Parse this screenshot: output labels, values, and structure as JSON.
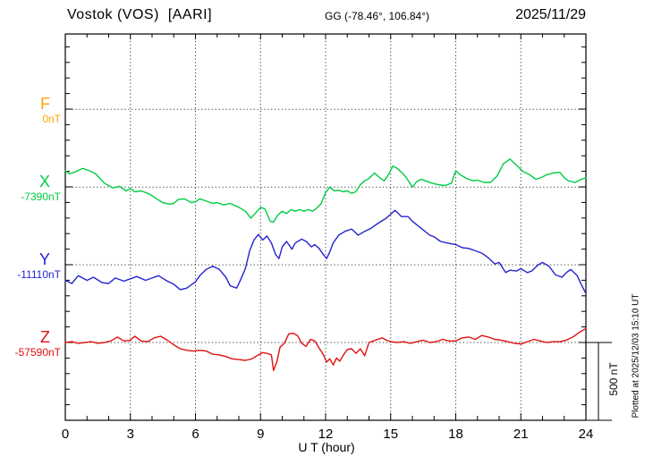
{
  "header": {
    "station": "Vostok (VOS)  [AARI]",
    "coordinates": "GG (-78.46°, 106.84°)",
    "date": "2025/11/29"
  },
  "side": {
    "plotted_note": "Plotted at 2025/12/03 15:10 UT"
  },
  "scale_bar": {
    "label": "500 nT",
    "span_nT": 500
  },
  "axes": {
    "x_label": "U T (hour)",
    "x_ticks": [
      0,
      3,
      6,
      9,
      12,
      15,
      18,
      21,
      24
    ],
    "x_range": [
      0,
      24
    ],
    "x_minor_step_hours": 1,
    "y_minor_step_nT": 100,
    "y_spacing_between_components_nT": 500
  },
  "components": [
    {
      "id": "F",
      "label": "F",
      "baseline_label": "0nT",
      "color": "#FFA500"
    },
    {
      "id": "X",
      "label": "X",
      "baseline_label": "-7390nT",
      "color": "#00CC44"
    },
    {
      "id": "Y",
      "label": "Y",
      "baseline_label": "-11110nT",
      "color": "#2424CF"
    },
    {
      "id": "Z",
      "label": "Z",
      "baseline_label": "-57590nT",
      "color": "#E01010"
    }
  ],
  "chart_data": {
    "type": "line",
    "title": "Vostok (VOS) [AARI] magnetogram 2025/11/29",
    "xlabel": "U T (hour)",
    "x_range": [
      0,
      24
    ],
    "x_ticks": [
      0,
      3,
      6,
      9,
      12,
      15,
      18,
      21,
      24
    ],
    "grid": "dotted vertical lines every 3 hours; dotted horizontal line at each component baseline",
    "units": "points are [hour UT, offset in nT relative to the component baseline value]",
    "series": [
      {
        "name": "F",
        "baseline_nT": 0,
        "color": "#FFA500",
        "note": "no data plotted",
        "points": []
      },
      {
        "name": "X",
        "baseline_nT": -7390,
        "color": "#00CC44",
        "points": [
          [
            0,
            105
          ],
          [
            0.2,
            85
          ],
          [
            0.5,
            100
          ],
          [
            0.8,
            120
          ],
          [
            1.1,
            105
          ],
          [
            1.4,
            85
          ],
          [
            1.6,
            55
          ],
          [
            1.8,
            25
          ],
          [
            2,
            10
          ],
          [
            2.2,
            -5
          ],
          [
            2.5,
            5
          ],
          [
            2.8,
            -25
          ],
          [
            3,
            -10
          ],
          [
            3.2,
            -30
          ],
          [
            3.5,
            -25
          ],
          [
            3.8,
            -40
          ],
          [
            4,
            -55
          ],
          [
            4.2,
            -75
          ],
          [
            4.5,
            -100
          ],
          [
            4.8,
            -110
          ],
          [
            5,
            -105
          ],
          [
            5.2,
            -80
          ],
          [
            5.5,
            -75
          ],
          [
            5.8,
            -100
          ],
          [
            6,
            -95
          ],
          [
            6.2,
            -75
          ],
          [
            6.5,
            -90
          ],
          [
            6.8,
            -105
          ],
          [
            7,
            -100
          ],
          [
            7.3,
            -115
          ],
          [
            7.6,
            -105
          ],
          [
            8,
            -130
          ],
          [
            8.3,
            -155
          ],
          [
            8.55,
            -200
          ],
          [
            8.75,
            -170
          ],
          [
            9,
            -130
          ],
          [
            9.2,
            -140
          ],
          [
            9.45,
            -220
          ],
          [
            9.6,
            -225
          ],
          [
            9.8,
            -180
          ],
          [
            10,
            -155
          ],
          [
            10.2,
            -170
          ],
          [
            10.4,
            -145
          ],
          [
            10.6,
            -155
          ],
          [
            10.8,
            -145
          ],
          [
            11,
            -155
          ],
          [
            11.2,
            -145
          ],
          [
            11.4,
            -155
          ],
          [
            11.6,
            -135
          ],
          [
            11.8,
            -105
          ],
          [
            12,
            -35
          ],
          [
            12.2,
            0
          ],
          [
            12.4,
            -25
          ],
          [
            12.6,
            -20
          ],
          [
            12.8,
            -30
          ],
          [
            13,
            -25
          ],
          [
            13.2,
            -40
          ],
          [
            13.4,
            -30
          ],
          [
            13.6,
            15
          ],
          [
            13.8,
            40
          ],
          [
            14,
            55
          ],
          [
            14.25,
            90
          ],
          [
            14.5,
            60
          ],
          [
            14.7,
            40
          ],
          [
            14.9,
            80
          ],
          [
            15.1,
            135
          ],
          [
            15.3,
            120
          ],
          [
            15.5,
            95
          ],
          [
            15.7,
            65
          ],
          [
            16,
            0
          ],
          [
            16.2,
            35
          ],
          [
            16.4,
            50
          ],
          [
            16.6,
            40
          ],
          [
            16.9,
            25
          ],
          [
            17.2,
            15
          ],
          [
            17.5,
            10
          ],
          [
            17.8,
            25
          ],
          [
            18,
            105
          ],
          [
            18.2,
            80
          ],
          [
            18.5,
            55
          ],
          [
            18.8,
            40
          ],
          [
            19,
            45
          ],
          [
            19.3,
            30
          ],
          [
            19.6,
            30
          ],
          [
            19.9,
            70
          ],
          [
            20.2,
            150
          ],
          [
            20.5,
            180
          ],
          [
            20.8,
            140
          ],
          [
            21.1,
            100
          ],
          [
            21.4,
            80
          ],
          [
            21.7,
            50
          ],
          [
            22,
            65
          ],
          [
            22.2,
            80
          ],
          [
            22.5,
            90
          ],
          [
            22.8,
            95
          ],
          [
            23,
            60
          ],
          [
            23.2,
            40
          ],
          [
            23.5,
            30
          ],
          [
            23.8,
            50
          ],
          [
            24,
            60
          ]
        ]
      },
      {
        "name": "Y",
        "baseline_nT": -11110,
        "color": "#2424CF",
        "points": [
          [
            0,
            -100
          ],
          [
            0.3,
            -120
          ],
          [
            0.6,
            -70
          ],
          [
            1,
            -100
          ],
          [
            1.3,
            -80
          ],
          [
            1.7,
            -115
          ],
          [
            2,
            -120
          ],
          [
            2.3,
            -85
          ],
          [
            2.7,
            -105
          ],
          [
            3,
            -90
          ],
          [
            3.3,
            -75
          ],
          [
            3.7,
            -100
          ],
          [
            4,
            -85
          ],
          [
            4.3,
            -70
          ],
          [
            4.7,
            -105
          ],
          [
            5,
            -125
          ],
          [
            5.3,
            -160
          ],
          [
            5.6,
            -150
          ],
          [
            6,
            -110
          ],
          [
            6.2,
            -70
          ],
          [
            6.5,
            -30
          ],
          [
            6.8,
            -10
          ],
          [
            7.1,
            -30
          ],
          [
            7.4,
            -80
          ],
          [
            7.6,
            -135
          ],
          [
            7.9,
            -150
          ],
          [
            8.1,
            -90
          ],
          [
            8.3,
            -25
          ],
          [
            8.5,
            90
          ],
          [
            8.7,
            160
          ],
          [
            8.9,
            195
          ],
          [
            9.1,
            160
          ],
          [
            9.3,
            185
          ],
          [
            9.5,
            140
          ],
          [
            9.7,
            65
          ],
          [
            9.85,
            40
          ],
          [
            10,
            115
          ],
          [
            10.2,
            150
          ],
          [
            10.45,
            100
          ],
          [
            10.6,
            140
          ],
          [
            10.9,
            165
          ],
          [
            11.1,
            150
          ],
          [
            11.35,
            115
          ],
          [
            11.5,
            130
          ],
          [
            11.7,
            105
          ],
          [
            11.9,
            65
          ],
          [
            12.05,
            40
          ],
          [
            12.2,
            85
          ],
          [
            12.35,
            140
          ],
          [
            12.6,
            190
          ],
          [
            12.9,
            215
          ],
          [
            13.2,
            230
          ],
          [
            13.5,
            190
          ],
          [
            13.8,
            215
          ],
          [
            14.1,
            235
          ],
          [
            14.4,
            265
          ],
          [
            14.8,
            300
          ],
          [
            15.2,
            350
          ],
          [
            15.5,
            310
          ],
          [
            15.8,
            310
          ],
          [
            16,
            280
          ],
          [
            16.4,
            235
          ],
          [
            16.8,
            190
          ],
          [
            17,
            180
          ],
          [
            17.3,
            150
          ],
          [
            17.6,
            140
          ],
          [
            18,
            130
          ],
          [
            18.3,
            110
          ],
          [
            18.6,
            105
          ],
          [
            18.9,
            90
          ],
          [
            19.2,
            75
          ],
          [
            19.5,
            45
          ],
          [
            19.8,
            5
          ],
          [
            20,
            15
          ],
          [
            20.3,
            -50
          ],
          [
            20.5,
            -35
          ],
          [
            20.8,
            -40
          ],
          [
            21,
            -25
          ],
          [
            21.3,
            -50
          ],
          [
            21.5,
            -40
          ],
          [
            21.8,
            0
          ],
          [
            22,
            15
          ],
          [
            22.3,
            -10
          ],
          [
            22.6,
            -65
          ],
          [
            22.9,
            -80
          ],
          [
            23.1,
            -50
          ],
          [
            23.3,
            -30
          ],
          [
            23.6,
            -70
          ],
          [
            23.8,
            -130
          ],
          [
            24,
            -185
          ]
        ]
      },
      {
        "name": "Z",
        "baseline_nT": -57590,
        "color": "#E01010",
        "points": [
          [
            0,
            0
          ],
          [
            0.3,
            5
          ],
          [
            0.6,
            -5
          ],
          [
            0.9,
            0
          ],
          [
            1.2,
            5
          ],
          [
            1.5,
            -5
          ],
          [
            1.8,
            0
          ],
          [
            2.1,
            10
          ],
          [
            2.4,
            35
          ],
          [
            2.7,
            10
          ],
          [
            3,
            15
          ],
          [
            3.2,
            40
          ],
          [
            3.5,
            10
          ],
          [
            3.8,
            5
          ],
          [
            4.1,
            30
          ],
          [
            4.4,
            40
          ],
          [
            4.7,
            15
          ],
          [
            5,
            -15
          ],
          [
            5.3,
            -40
          ],
          [
            5.6,
            -50
          ],
          [
            5.9,
            -55
          ],
          [
            6.2,
            -50
          ],
          [
            6.5,
            -55
          ],
          [
            6.8,
            -75
          ],
          [
            7.1,
            -80
          ],
          [
            7.4,
            -90
          ],
          [
            7.7,
            -105
          ],
          [
            8,
            -110
          ],
          [
            8.3,
            -115
          ],
          [
            8.6,
            -105
          ],
          [
            8.9,
            -80
          ],
          [
            9.1,
            -65
          ],
          [
            9.3,
            -70
          ],
          [
            9.5,
            -80
          ],
          [
            9.6,
            -180
          ],
          [
            9.75,
            -125
          ],
          [
            9.9,
            -30
          ],
          [
            10.1,
            -5
          ],
          [
            10.3,
            55
          ],
          [
            10.5,
            60
          ],
          [
            10.7,
            45
          ],
          [
            10.9,
            -5
          ],
          [
            11.1,
            -25
          ],
          [
            11.3,
            20
          ],
          [
            11.5,
            10
          ],
          [
            11.7,
            -35
          ],
          [
            11.9,
            -80
          ],
          [
            12.05,
            -125
          ],
          [
            12.2,
            -105
          ],
          [
            12.35,
            -145
          ],
          [
            12.5,
            -100
          ],
          [
            12.65,
            -120
          ],
          [
            12.8,
            -85
          ],
          [
            13,
            -45
          ],
          [
            13.2,
            -40
          ],
          [
            13.4,
            -70
          ],
          [
            13.6,
            -40
          ],
          [
            13.8,
            -85
          ],
          [
            14,
            0
          ],
          [
            14.2,
            10
          ],
          [
            14.4,
            20
          ],
          [
            14.6,
            30
          ],
          [
            14.8,
            15
          ],
          [
            15,
            5
          ],
          [
            15.3,
            0
          ],
          [
            15.6,
            5
          ],
          [
            15.9,
            -5
          ],
          [
            16.2,
            5
          ],
          [
            16.5,
            15
          ],
          [
            16.8,
            0
          ],
          [
            17.1,
            5
          ],
          [
            17.4,
            20
          ],
          [
            17.7,
            10
          ],
          [
            18,
            10
          ],
          [
            18.3,
            30
          ],
          [
            18.6,
            35
          ],
          [
            18.9,
            20
          ],
          [
            19.2,
            45
          ],
          [
            19.5,
            35
          ],
          [
            19.8,
            20
          ],
          [
            20.1,
            15
          ],
          [
            20.4,
            5
          ],
          [
            20.7,
            -5
          ],
          [
            21,
            -10
          ],
          [
            21.3,
            5
          ],
          [
            21.6,
            20
          ],
          [
            21.9,
            10
          ],
          [
            22.2,
            0
          ],
          [
            22.5,
            5
          ],
          [
            22.8,
            5
          ],
          [
            23.1,
            15
          ],
          [
            23.4,
            35
          ],
          [
            23.7,
            65
          ],
          [
            24,
            90
          ]
        ]
      }
    ]
  }
}
